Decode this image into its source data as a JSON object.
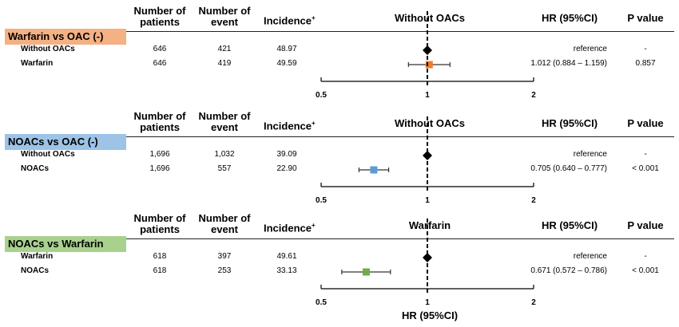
{
  "headers": {
    "patients": [
      "Number of",
      "patients"
    ],
    "events": [
      "Number of",
      "event"
    ],
    "incidence": "Incidence",
    "incidence_mark": "+",
    "hr": "HR (95%CI)",
    "p": "P value"
  },
  "x_axis_label": "HR (95%CI)",
  "colors": {
    "orange": "#f4b183",
    "blue": "#9dc3e6",
    "green": "#a9d18e",
    "marker_orange": "#ed7d31",
    "marker_blue": "#5b9bd5",
    "marker_green": "#70ad47"
  },
  "chart_data": {
    "type": "forest",
    "x_axis": {
      "scale": "log",
      "ticks": [
        "0.5",
        "1",
        "2"
      ],
      "range": [
        0.5,
        2
      ],
      "reference_line": 1
    },
    "panels": [
      {
        "comparison": "Warfarin vs OAC (-)",
        "reference_header": "Without OACs",
        "color_key": "orange",
        "rows": [
          {
            "group": "Without OACs",
            "patients": "646",
            "events": "421",
            "incidence": "48.97",
            "hr_text": "reference",
            "p_text": "-",
            "hr": 1,
            "lo": null,
            "hi": null,
            "reference": true
          },
          {
            "group": "Warfarin",
            "patients": "646",
            "events": "419",
            "incidence": "49.59",
            "hr_text": "1.012 (0.884 – 1.159)",
            "p_text": "0.857",
            "hr": 1.012,
            "lo": 0.884,
            "hi": 1.159,
            "reference": false
          }
        ]
      },
      {
        "comparison": "NOACs vs OAC (-)",
        "reference_header": "Without OACs",
        "color_key": "blue",
        "rows": [
          {
            "group": "Without OACs",
            "patients": "1,696",
            "events": "1,032",
            "incidence": "39.09",
            "hr_text": "reference",
            "p_text": "-",
            "hr": 1,
            "lo": null,
            "hi": null,
            "reference": true
          },
          {
            "group": "NOACs",
            "patients": "1,696",
            "events": "557",
            "incidence": "22.90",
            "hr_text": "0.705 (0.640 – 0.777)",
            "p_text": "< 0.001",
            "hr": 0.705,
            "lo": 0.64,
            "hi": 0.777,
            "reference": false
          }
        ]
      },
      {
        "comparison": "NOACs vs Warfarin",
        "reference_header": "Warfarin",
        "color_key": "green",
        "rows": [
          {
            "group": "Warfarin",
            "patients": "618",
            "events": "397",
            "incidence": "49.61",
            "hr_text": "reference",
            "p_text": "-",
            "hr": 1,
            "lo": null,
            "hi": null,
            "reference": true
          },
          {
            "group": "NOACs",
            "patients": "618",
            "events": "253",
            "incidence": "33.13",
            "hr_text": "0.671 (0.572 – 0.786)",
            "p_text": "< 0.001",
            "hr": 0.671,
            "lo": 0.572,
            "hi": 0.786,
            "reference": false
          }
        ]
      }
    ]
  }
}
